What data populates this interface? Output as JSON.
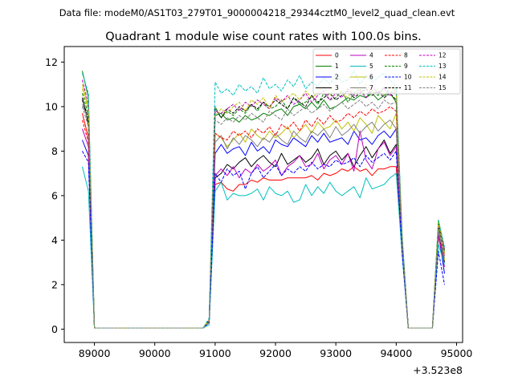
{
  "suptitle": "Data file: modeM0/AS1T03_279T01_9000004218_29344cztM0_level2_quad_clean.evt",
  "chart_data": {
    "type": "line",
    "title": "Quadrant 1 module wise count rates with 100.0s bins.",
    "xlabel": "",
    "ylabel": "",
    "x_offset_label": "+3.523e8",
    "xlim": [
      88500,
      95100
    ],
    "ylim": [
      -0.6,
      12.7
    ],
    "xticks": [
      89000,
      90000,
      91000,
      92000,
      93000,
      94000,
      95000
    ],
    "yticks": [
      0,
      2,
      4,
      6,
      8,
      10,
      12
    ],
    "grid": false,
    "legend_position": "top-right",
    "legend_columns": 4,
    "x": [
      88800,
      88900,
      89000,
      89100,
      89200,
      89300,
      89400,
      89500,
      89600,
      89700,
      89800,
      89900,
      90000,
      90100,
      90200,
      90300,
      90400,
      90500,
      90600,
      90700,
      90800,
      90900,
      91000,
      91100,
      91200,
      91300,
      91400,
      91500,
      91600,
      91700,
      91800,
      91900,
      92000,
      92100,
      92200,
      92300,
      92400,
      92500,
      92600,
      92700,
      92800,
      92900,
      93000,
      93100,
      93200,
      93300,
      93400,
      93500,
      93600,
      93700,
      93800,
      93900,
      94000,
      94100,
      94200,
      94300,
      94400,
      94500,
      94600,
      94700,
      94800
    ],
    "series": [
      {
        "name": "0",
        "color": "#ff0000",
        "dash": "solid",
        "values": [
          9.7,
          8.6,
          0.05,
          0.05,
          0.05,
          0.05,
          0.05,
          0.05,
          0.05,
          0.05,
          0.05,
          0.05,
          0.05,
          0.05,
          0.05,
          0.05,
          0.05,
          0.05,
          0.05,
          0.05,
          0.05,
          0.3,
          6.5,
          6.6,
          6.3,
          6.2,
          6.5,
          6.5,
          6.7,
          6.6,
          6.8,
          6.7,
          6.7,
          6.7,
          6.8,
          6.8,
          6.8,
          6.8,
          6.9,
          6.7,
          7.0,
          6.9,
          7.0,
          7.2,
          7.1,
          7.3,
          7.1,
          7.2,
          6.9,
          7.2,
          7.2,
          7.3,
          7.3,
          3.5,
          0.05,
          0.05,
          0.05,
          0.05,
          0.05,
          4.1,
          3.3
        ]
      },
      {
        "name": "1",
        "color": "#008000",
        "dash": "solid",
        "values": [
          11.6,
          10.4,
          0.05,
          0.05,
          0.05,
          0.05,
          0.05,
          0.05,
          0.05,
          0.05,
          0.05,
          0.05,
          0.05,
          0.05,
          0.05,
          0.05,
          0.05,
          0.05,
          0.05,
          0.05,
          0.05,
          0.4,
          9.6,
          9.7,
          9.4,
          9.5,
          9.3,
          9.6,
          9.4,
          9.5,
          9.7,
          9.6,
          9.8,
          9.9,
          9.6,
          10.0,
          10.1,
          9.9,
          10.2,
          9.9,
          10.3,
          9.9,
          10.0,
          10.2,
          10.4,
          10.3,
          10.5,
          10.4,
          10.6,
          10.3,
          10.5,
          10.6,
          10.2,
          4.0,
          0.05,
          0.05,
          0.05,
          0.05,
          0.05,
          4.9,
          3.5
        ]
      },
      {
        "name": "2",
        "color": "#0000ff",
        "dash": "solid",
        "values": [
          8.5,
          7.8,
          0.05,
          0.05,
          0.05,
          0.05,
          0.05,
          0.05,
          0.05,
          0.05,
          0.05,
          0.05,
          0.05,
          0.05,
          0.05,
          0.05,
          0.05,
          0.05,
          0.05,
          0.05,
          0.05,
          0.3,
          7.9,
          8.3,
          7.9,
          8.1,
          8.2,
          7.8,
          8.4,
          8.0,
          8.2,
          7.9,
          8.5,
          8.3,
          8.2,
          8.6,
          8.4,
          8.2,
          8.7,
          8.4,
          8.8,
          8.4,
          8.5,
          8.6,
          8.3,
          8.9,
          8.5,
          8.6,
          8.3,
          8.7,
          8.9,
          8.6,
          9.0,
          3.7,
          0.05,
          0.05,
          0.05,
          0.05,
          0.05,
          4.3,
          2.5
        ]
      },
      {
        "name": "3",
        "color": "#000000",
        "dash": "solid",
        "values": [
          10.4,
          9.2,
          0.05,
          0.05,
          0.05,
          0.05,
          0.05,
          0.05,
          0.05,
          0.05,
          0.05,
          0.05,
          0.05,
          0.05,
          0.05,
          0.05,
          0.05,
          0.05,
          0.05,
          0.05,
          0.05,
          0.3,
          6.8,
          7.0,
          7.4,
          7.2,
          7.5,
          7.7,
          7.3,
          7.6,
          7.8,
          7.5,
          7.3,
          7.9,
          7.4,
          7.6,
          7.8,
          7.5,
          7.7,
          8.1,
          7.4,
          7.8,
          8.0,
          7.6,
          7.9,
          7.3,
          7.8,
          8.2,
          7.7,
          8.1,
          8.5,
          7.9,
          8.3,
          3.5,
          0.05,
          0.05,
          0.05,
          0.05,
          0.05,
          4.5,
          3.0
        ]
      },
      {
        "name": "4",
        "color": "#bf00bf",
        "dash": "solid",
        "values": [
          9.0,
          8.2,
          0.05,
          0.05,
          0.05,
          0.05,
          0.05,
          0.05,
          0.05,
          0.05,
          0.05,
          0.05,
          0.05,
          0.05,
          0.05,
          0.05,
          0.05,
          0.05,
          0.05,
          0.05,
          0.05,
          0.3,
          6.9,
          7.2,
          6.9,
          7.3,
          6.8,
          7.2,
          7.0,
          7.4,
          7.1,
          7.3,
          7.6,
          6.9,
          7.3,
          7.5,
          7.8,
          7.3,
          7.4,
          7.9,
          7.2,
          7.6,
          7.8,
          7.4,
          7.9,
          7.1,
          8.9,
          7.6,
          7.2,
          8.1,
          8.4,
          7.8,
          8.2,
          3.5,
          0.05,
          0.05,
          0.05,
          0.05,
          0.05,
          4.2,
          2.8
        ]
      },
      {
        "name": "5",
        "color": "#00bfbf",
        "dash": "solid",
        "values": [
          7.3,
          6.2,
          0.05,
          0.05,
          0.05,
          0.05,
          0.05,
          0.05,
          0.05,
          0.05,
          0.05,
          0.05,
          0.05,
          0.05,
          0.05,
          0.05,
          0.05,
          0.05,
          0.05,
          0.05,
          0.05,
          0.2,
          6.2,
          6.6,
          5.8,
          6.1,
          6.0,
          6.0,
          6.1,
          6.3,
          5.8,
          6.4,
          6.1,
          6.0,
          6.2,
          5.7,
          5.8,
          6.5,
          6.0,
          6.4,
          6.1,
          6.6,
          6.2,
          6.0,
          6.2,
          6.4,
          5.9,
          6.8,
          6.3,
          6.4,
          6.5,
          6.8,
          7.0,
          3.3,
          0.05,
          0.05,
          0.05,
          0.05,
          0.05,
          3.8,
          2.9
        ]
      },
      {
        "name": "6",
        "color": "#bfbf00",
        "dash": "solid",
        "values": [
          11.0,
          9.9,
          0.05,
          0.05,
          0.05,
          0.05,
          0.05,
          0.05,
          0.05,
          0.05,
          0.05,
          0.05,
          0.05,
          0.05,
          0.05,
          0.05,
          0.05,
          0.05,
          0.05,
          0.05,
          0.05,
          0.4,
          8.8,
          8.6,
          8.2,
          8.5,
          8.8,
          8.4,
          9.0,
          8.7,
          8.5,
          8.9,
          8.6,
          8.8,
          9.1,
          8.6,
          8.9,
          9.2,
          8.8,
          9.3,
          9.0,
          9.1,
          9.4,
          9.0,
          9.3,
          8.9,
          9.5,
          9.2,
          8.8,
          9.6,
          9.3,
          9.0,
          9.7,
          3.8,
          0.05,
          0.05,
          0.05,
          0.05,
          0.05,
          4.6,
          3.1
        ]
      },
      {
        "name": "7",
        "color": "#808080",
        "dash": "solid",
        "values": [
          10.1,
          9.4,
          0.05,
          0.05,
          0.05,
          0.05,
          0.05,
          0.05,
          0.05,
          0.05,
          0.05,
          0.05,
          0.05,
          0.05,
          0.05,
          0.05,
          0.05,
          0.05,
          0.05,
          0.05,
          0.05,
          0.3,
          8.4,
          8.7,
          8.1,
          8.6,
          8.3,
          8.7,
          8.5,
          8.2,
          8.6,
          8.4,
          8.8,
          8.5,
          8.3,
          8.9,
          8.6,
          8.4,
          8.9,
          8.7,
          9.0,
          8.6,
          9.1,
          8.7,
          8.9,
          9.2,
          8.8,
          9.1,
          9.3,
          8.9,
          9.2,
          9.4,
          9.0,
          3.6,
          0.05,
          0.05,
          0.05,
          0.05,
          0.05,
          4.4,
          3.2
        ]
      },
      {
        "name": "8",
        "color": "#ff0000",
        "dash": "dashed",
        "values": [
          9.4,
          8.4,
          0.05,
          0.05,
          0.05,
          0.05,
          0.05,
          0.05,
          0.05,
          0.05,
          0.05,
          0.05,
          0.05,
          0.05,
          0.05,
          0.05,
          0.05,
          0.05,
          0.05,
          0.05,
          0.05,
          0.3,
          8.8,
          8.6,
          8.5,
          8.9,
          8.7,
          8.9,
          8.6,
          9.0,
          8.8,
          9.1,
          8.7,
          9.2,
          9.0,
          9.3,
          8.9,
          9.4,
          9.1,
          9.5,
          9.2,
          9.6,
          9.3,
          9.4,
          9.7,
          9.5,
          9.8,
          9.6,
          9.9,
          9.7,
          9.8,
          10.0,
          9.8,
          3.9,
          0.05,
          0.05,
          0.05,
          0.05,
          0.05,
          4.7,
          3.4
        ]
      },
      {
        "name": "9",
        "color": "#008000",
        "dash": "dashed",
        "values": [
          10.6,
          9.6,
          0.05,
          0.05,
          0.05,
          0.05,
          0.05,
          0.05,
          0.05,
          0.05,
          0.05,
          0.05,
          0.05,
          0.05,
          0.05,
          0.05,
          0.05,
          0.05,
          0.05,
          0.05,
          0.05,
          0.4,
          10.0,
          9.5,
          9.8,
          9.6,
          9.9,
          9.7,
          10.1,
          9.8,
          10.2,
          9.9,
          10.0,
          10.3,
          9.9,
          10.4,
          10.1,
          10.2,
          10.5,
          10.1,
          10.6,
          10.3,
          10.4,
          10.7,
          10.2,
          10.6,
          10.8,
          10.4,
          10.7,
          10.5,
          10.9,
          10.6,
          10.8,
          4.1,
          0.05,
          0.05,
          0.05,
          0.05,
          0.05,
          4.8,
          3.6
        ]
      },
      {
        "name": "10",
        "color": "#0000ff",
        "dash": "dashed",
        "values": [
          8.0,
          7.5,
          0.05,
          0.05,
          0.05,
          0.05,
          0.05,
          0.05,
          0.05,
          0.05,
          0.05,
          0.05,
          0.05,
          0.05,
          0.05,
          0.05,
          0.05,
          0.05,
          0.05,
          0.05,
          0.05,
          0.3,
          7.0,
          6.6,
          7.2,
          6.9,
          7.1,
          6.3,
          7.0,
          7.3,
          6.8,
          7.1,
          7.4,
          6.9,
          7.2,
          7.0,
          7.3,
          7.1,
          7.5,
          7.2,
          7.4,
          7.3,
          7.6,
          7.4,
          7.5,
          7.7,
          7.3,
          7.8,
          7.5,
          7.7,
          7.9,
          7.6,
          8.0,
          3.4,
          0.05,
          0.05,
          0.05,
          0.05,
          0.05,
          3.5,
          2.0
        ]
      },
      {
        "name": "11",
        "color": "#000000",
        "dash": "dashed",
        "values": [
          10.3,
          9.5,
          0.05,
          0.05,
          0.05,
          0.05,
          0.05,
          0.05,
          0.05,
          0.05,
          0.05,
          0.05,
          0.05,
          0.05,
          0.05,
          0.05,
          0.05,
          0.05,
          0.05,
          0.05,
          0.05,
          0.4,
          9.9,
          9.5,
          9.9,
          9.7,
          10.0,
          9.8,
          10.1,
          9.9,
          10.2,
          10.0,
          10.3,
          10.1,
          9.9,
          10.4,
          10.2,
          10.0,
          10.5,
          10.2,
          10.4,
          10.6,
          10.3,
          10.5,
          10.7,
          10.4,
          10.6,
          10.8,
          10.5,
          10.7,
          10.4,
          10.6,
          10.3,
          4.0,
          0.05,
          0.05,
          0.05,
          0.05,
          0.05,
          4.6,
          3.5
        ]
      },
      {
        "name": "12",
        "color": "#bf00bf",
        "dash": "dashed",
        "values": [
          11.2,
          10.1,
          0.05,
          0.05,
          0.05,
          0.05,
          0.05,
          0.05,
          0.05,
          0.05,
          0.05,
          0.05,
          0.05,
          0.05,
          0.05,
          0.05,
          0.05,
          0.05,
          0.05,
          0.05,
          0.05,
          0.4,
          9.8,
          9.7,
          9.9,
          10.1,
          9.8,
          10.2,
          10.0,
          10.3,
          10.1,
          9.9,
          10.4,
          10.2,
          10.5,
          10.1,
          10.3,
          10.6,
          10.2,
          10.5,
          10.7,
          10.3,
          10.6,
          10.4,
          10.8,
          10.5,
          10.7,
          10.4,
          10.9,
          10.6,
          10.8,
          10.5,
          10.7,
          4.1,
          0.05,
          0.05,
          0.05,
          0.05,
          0.05,
          4.7,
          3.6
        ]
      },
      {
        "name": "13",
        "color": "#00bfbf",
        "dash": "dashed",
        "values": [
          11.5,
          10.6,
          0.05,
          0.05,
          0.05,
          0.05,
          0.05,
          0.05,
          0.05,
          0.05,
          0.05,
          0.05,
          0.05,
          0.05,
          0.05,
          0.05,
          0.05,
          0.05,
          0.05,
          0.05,
          0.05,
          0.5,
          11.1,
          10.6,
          10.8,
          10.5,
          11.0,
          10.7,
          10.9,
          10.6,
          11.3,
          10.8,
          11.0,
          10.7,
          11.2,
          10.9,
          11.4,
          10.8,
          11.1,
          10.9,
          11.3,
          11.0,
          11.5,
          11.1,
          11.2,
          11.6,
          11.0,
          11.4,
          11.1,
          11.3,
          11.5,
          11.2,
          10.9,
          4.2,
          0.05,
          0.05,
          0.05,
          0.05,
          0.05,
          4.9,
          3.7
        ]
      },
      {
        "name": "14",
        "color": "#bfbf00",
        "dash": "dashed",
        "values": [
          10.8,
          9.8,
          0.05,
          0.05,
          0.05,
          0.05,
          0.05,
          0.05,
          0.05,
          0.05,
          0.05,
          0.05,
          0.05,
          0.05,
          0.05,
          0.05,
          0.05,
          0.05,
          0.05,
          0.05,
          0.05,
          0.4,
          9.6,
          9.9,
          9.7,
          10.0,
          10.2,
          9.8,
          10.3,
          10.1,
          10.4,
          9.9,
          10.5,
          10.2,
          10.4,
          10.6,
          10.3,
          10.7,
          10.4,
          10.6,
          10.9,
          10.5,
          10.8,
          10.6,
          10.4,
          10.9,
          10.7,
          11.0,
          10.6,
          10.8,
          10.5,
          10.9,
          10.6,
          4.0,
          0.05,
          0.05,
          0.05,
          0.05,
          0.05,
          4.8,
          3.4
        ]
      },
      {
        "name": "15",
        "color": "#808080",
        "dash": "dashed",
        "values": [
          10.0,
          9.1,
          0.05,
          0.05,
          0.05,
          0.05,
          0.05,
          0.05,
          0.05,
          0.05,
          0.05,
          0.05,
          0.05,
          0.05,
          0.05,
          0.05,
          0.05,
          0.05,
          0.05,
          0.05,
          0.05,
          0.3,
          9.4,
          9.2,
          9.5,
          9.3,
          9.6,
          9.4,
          9.7,
          9.5,
          9.3,
          9.8,
          9.6,
          9.4,
          9.9,
          9.6,
          9.8,
          10.0,
          9.7,
          9.9,
          10.1,
          9.8,
          10.0,
          10.2,
          9.9,
          10.1,
          10.3,
          10.0,
          10.2,
          9.9,
          10.3,
          10.1,
          10.2,
          3.9,
          0.05,
          0.05,
          0.05,
          0.05,
          0.05,
          4.5,
          3.3
        ]
      }
    ]
  }
}
